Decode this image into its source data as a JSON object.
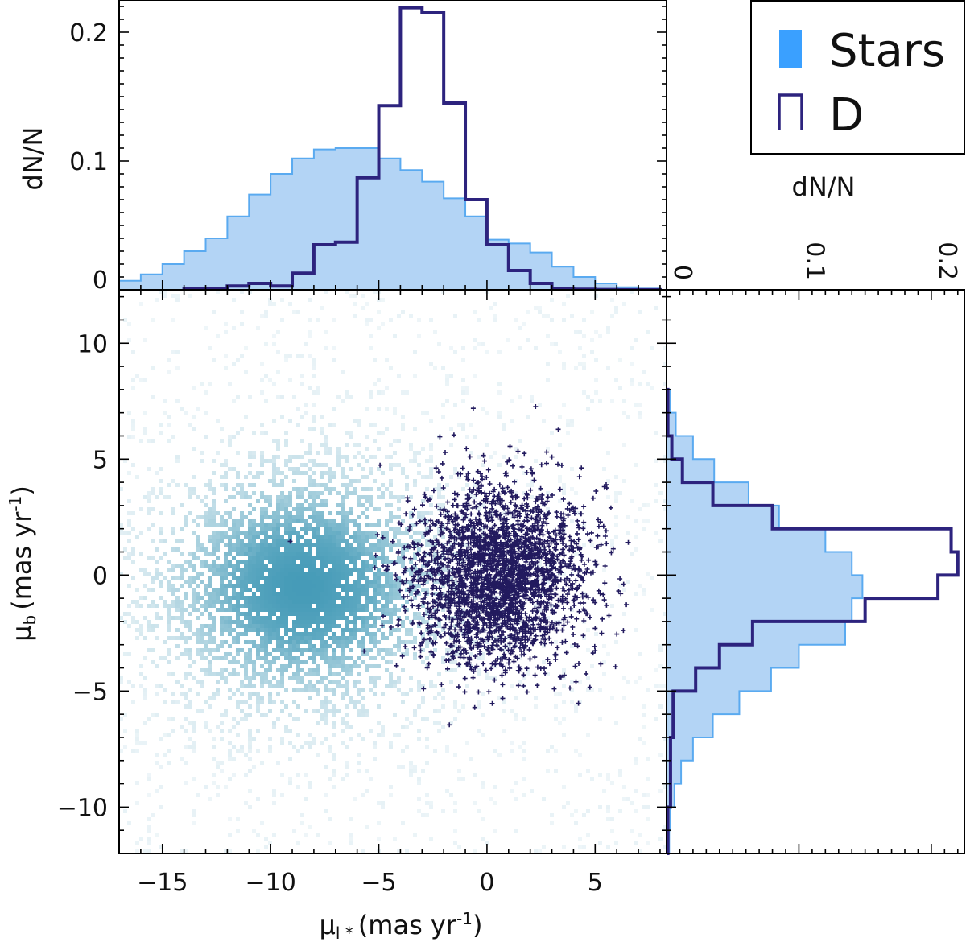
{
  "chart_data": [
    {
      "panel": "top-histogram",
      "type": "histogram",
      "ylabel": "dN/N",
      "xlim": [
        -17,
        8.3
      ],
      "ylim": [
        0,
        0.225
      ],
      "yticks": [
        0,
        0.1,
        0.2
      ],
      "ytick_labels": [
        "0",
        "0.1",
        "0.2"
      ],
      "bin_width": 1,
      "series": [
        {
          "name": "Stars",
          "style": "filled",
          "bin_starts": [
            -17,
            -16,
            -15,
            -14,
            -13,
            -12,
            -11,
            -10,
            -9,
            -8,
            -7,
            -6,
            -5,
            -4,
            -3,
            -2,
            -1,
            0,
            1,
            2,
            3,
            4,
            5,
            6,
            7
          ],
          "values": [
            0.007,
            0.012,
            0.02,
            0.03,
            0.04,
            0.057,
            0.074,
            0.09,
            0.102,
            0.109,
            0.11,
            0.11,
            0.102,
            0.093,
            0.084,
            0.071,
            0.057,
            0.039,
            0.036,
            0.029,
            0.018,
            0.01,
            0.005,
            0.002,
            0.001
          ]
        },
        {
          "name": "D",
          "style": "step",
          "bin_starts": [
            -14,
            -13,
            -12,
            -11,
            -10,
            -9,
            -8,
            -7,
            -6,
            -5,
            -4,
            -3,
            -2,
            -1,
            0,
            1,
            2,
            3,
            4,
            5,
            6,
            7
          ],
          "values": [
            0.001,
            0.001,
            0.003,
            0.005,
            0.003,
            0.013,
            0.035,
            0.037,
            0.087,
            0.143,
            0.219,
            0.215,
            0.145,
            0.07,
            0.035,
            0.015,
            0.005,
            0.001,
            0.0005,
            0.0002,
            0.0001,
            0.0001
          ]
        }
      ]
    },
    {
      "panel": "scatter",
      "type": "scatter",
      "xlabel": "μl * (mas yr-1)",
      "ylabel": "μb (mas yr-1)",
      "xlim": [
        -17,
        8.3
      ],
      "ylim": [
        -12,
        12.3
      ],
      "xticks": [
        -15,
        -10,
        -5,
        0,
        5
      ],
      "xtick_labels": [
        "−15",
        "−10",
        "−5",
        "0",
        "5"
      ],
      "yticks": [
        -10,
        -5,
        0,
        5,
        10
      ],
      "ytick_labels": [
        "−10",
        "−5",
        "0",
        "5",
        "10"
      ],
      "series": [
        {
          "name": "Stars",
          "style": "density",
          "center": [
            -8.5,
            -0.5
          ],
          "spread": [
            4.2,
            3.3
          ]
        },
        {
          "name": "D",
          "style": "markers",
          "center": [
            0.5,
            0.0
          ],
          "spread": [
            2.0,
            1.9
          ]
        }
      ]
    },
    {
      "panel": "right-histogram",
      "type": "histogram",
      "orientation": "horizontal",
      "xlabel": "dN/N",
      "xlim": [
        0,
        0.225
      ],
      "xticks": [
        0,
        0.1,
        0.2
      ],
      "xtick_labels": [
        "0",
        "0.1",
        "0.2"
      ],
      "ylim": [
        -12,
        12.3
      ],
      "bin_width": 1,
      "series": [
        {
          "name": "Stars",
          "style": "filled",
          "bin_starts": [
            -12,
            -11,
            -10,
            -9,
            -8,
            -7,
            -6,
            -5,
            -4,
            -3,
            -2,
            -1,
            0,
            1,
            2,
            3,
            4,
            5,
            6,
            7
          ],
          "values": [
            0.002,
            0.003,
            0.006,
            0.011,
            0.02,
            0.035,
            0.055,
            0.079,
            0.1,
            0.135,
            0.14,
            0.148,
            0.14,
            0.12,
            0.085,
            0.062,
            0.036,
            0.02,
            0.007,
            0.003
          ]
        },
        {
          "name": "D",
          "style": "step",
          "bin_starts": [
            -12,
            -11,
            -10,
            -9,
            -8,
            -7,
            -6,
            -5,
            -4,
            -3,
            -2,
            -1,
            0,
            1,
            2,
            3,
            4,
            5,
            6,
            7
          ],
          "values": [
            0.001,
            0.001,
            0.003,
            0.003,
            0.003,
            0.005,
            0.005,
            0.022,
            0.04,
            0.065,
            0.15,
            0.205,
            0.22,
            0.215,
            0.08,
            0.035,
            0.012,
            0.004,
            0.001,
            0.001
          ]
        }
      ]
    }
  ],
  "legend": {
    "entries": [
      {
        "label": "Stars",
        "style": "filled"
      },
      {
        "label": "D",
        "style": "step"
      }
    ],
    "placement": "top-right"
  },
  "axis_titles": {
    "top_y": "dN/N",
    "right_x": "dN/N",
    "scatter_x_main": "μ",
    "scatter_x_sub": "l *",
    "scatter_x_unit": "(mas yr",
    "scatter_x_exp": "-1",
    "scatter_x_close": ")",
    "scatter_y_main": "μ",
    "scatter_y_sub": "b",
    "scatter_y_unit": "(mas yr",
    "scatter_y_exp": "-1",
    "scatter_y_close": ")"
  },
  "colors": {
    "stars_fill": "#b3d4f5",
    "stars_edge": "#5aaaf0",
    "d_line": "#2d237e",
    "density_dark": "#3c96b4",
    "density_light": "#d2e6ee",
    "marker": "#221a5e",
    "legend_stars": "#3aa0ff"
  }
}
